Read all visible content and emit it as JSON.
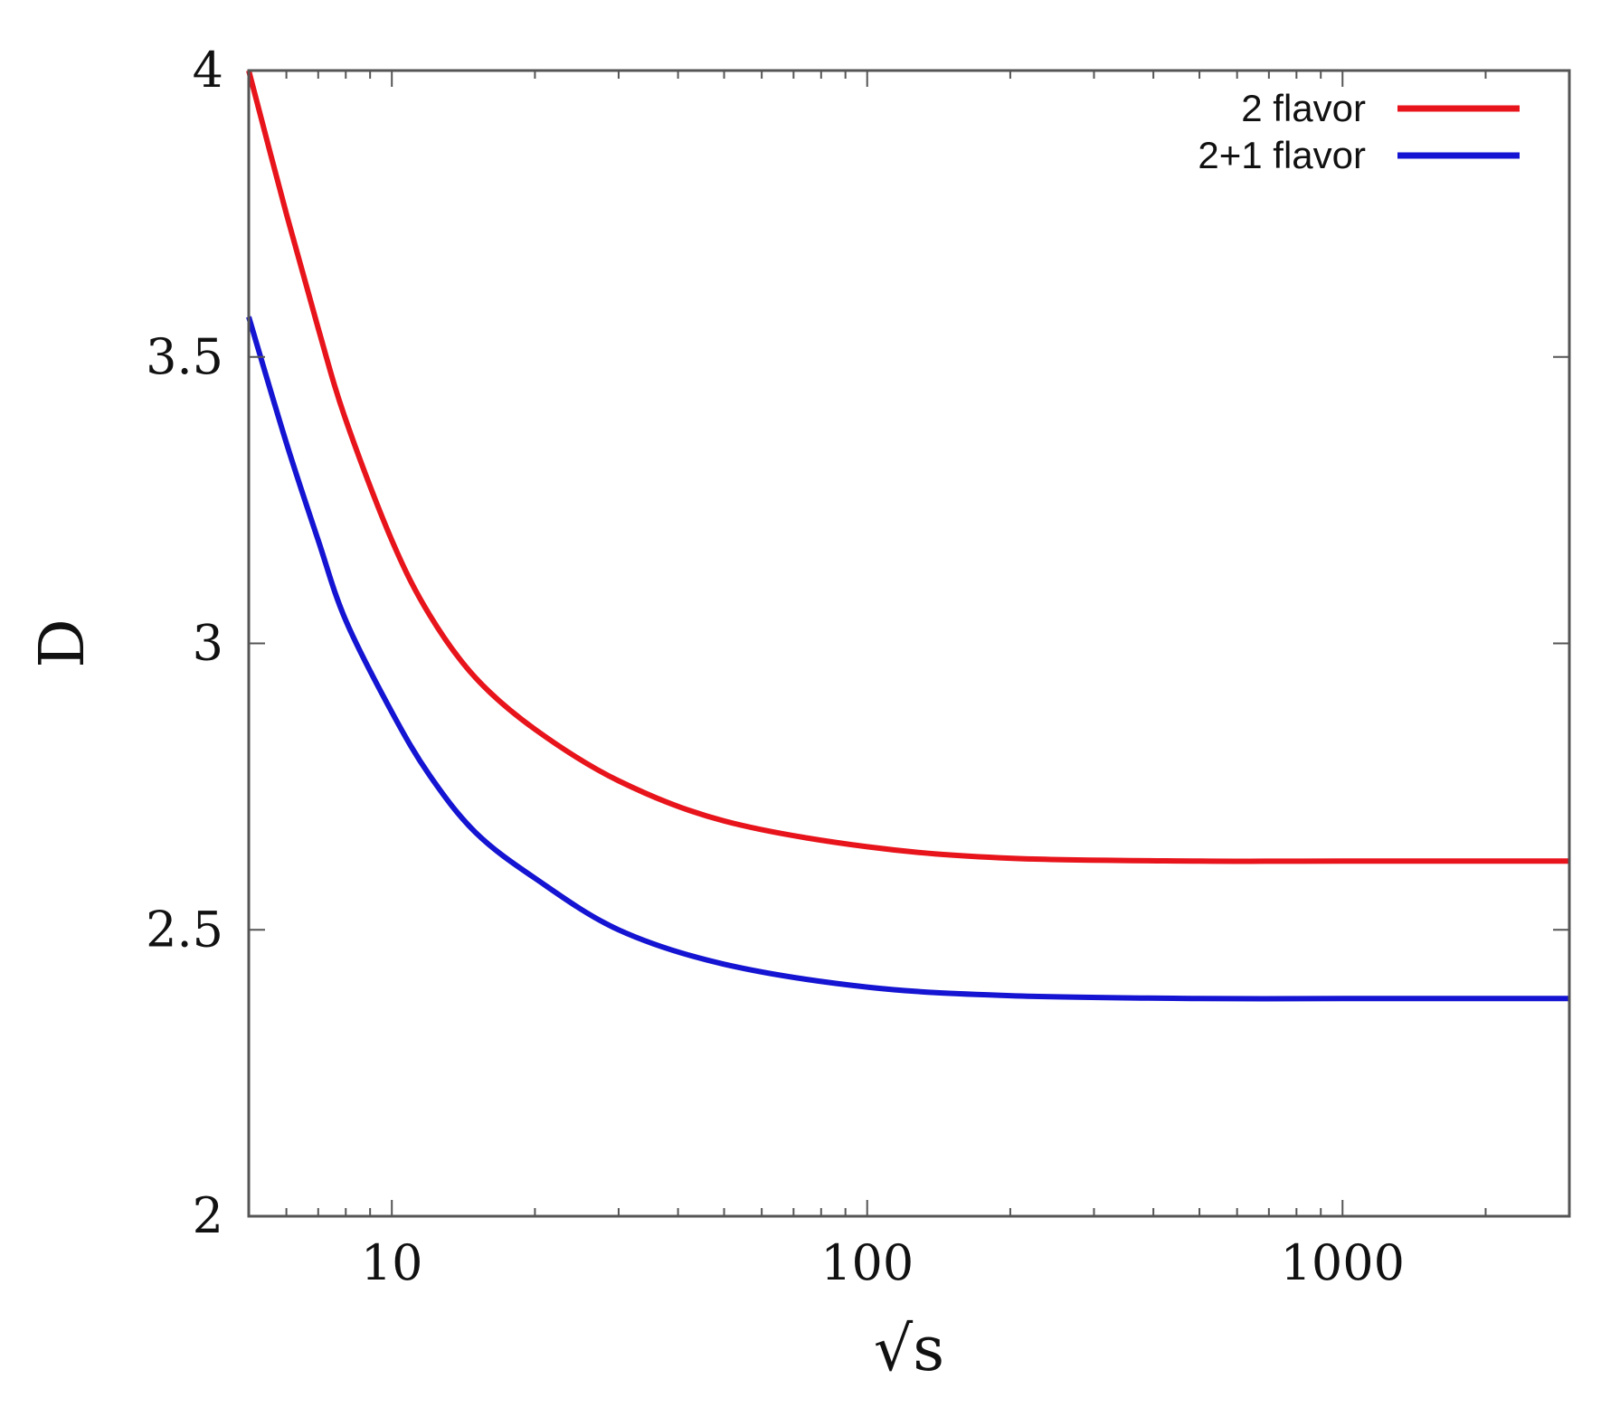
{
  "chart_data": {
    "type": "line",
    "xscale": "log",
    "xlim": [
      5,
      3000
    ],
    "ylim": [
      2,
      4
    ],
    "xlabel": "√s",
    "ylabel": "D",
    "xticks": [
      10,
      100,
      1000
    ],
    "xtick_labels": [
      "10",
      "100",
      "1000"
    ],
    "yticks": [
      2,
      2.5,
      3,
      3.5,
      4
    ],
    "ytick_labels": [
      "2",
      "2.5",
      "3",
      "3.5",
      "4"
    ],
    "grid": false,
    "legend_position": "top-right",
    "series": [
      {
        "name": "2 flavor",
        "color": "#e8141c",
        "x": [
          5,
          6,
          7,
          8,
          10,
          12,
          15,
          20,
          30,
          50,
          100,
          200,
          500,
          1000,
          3000
        ],
        "y": [
          4.0,
          3.75,
          3.55,
          3.39,
          3.18,
          3.05,
          2.94,
          2.85,
          2.76,
          2.69,
          2.645,
          2.625,
          2.62,
          2.62,
          2.62
        ]
      },
      {
        "name": "2+1 flavor",
        "color": "#1414d2",
        "x": [
          5,
          6,
          7,
          8,
          10,
          12,
          15,
          20,
          30,
          50,
          100,
          200,
          500,
          1000,
          3000
        ],
        "y": [
          3.57,
          3.35,
          3.18,
          3.04,
          2.88,
          2.77,
          2.67,
          2.59,
          2.5,
          2.44,
          2.4,
          2.385,
          2.38,
          2.38,
          2.38
        ]
      }
    ]
  }
}
